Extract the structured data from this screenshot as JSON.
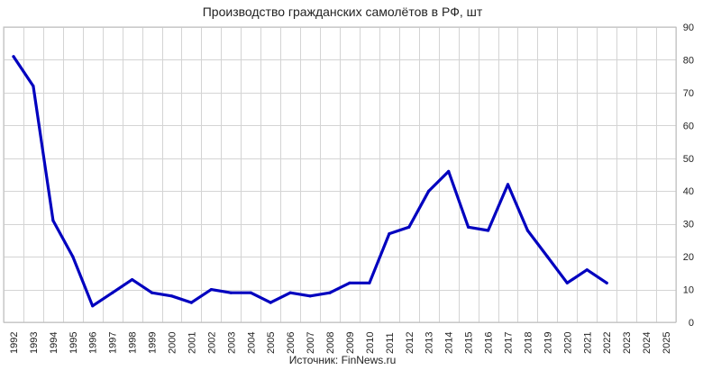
{
  "chart_data": {
    "type": "line",
    "title": "Производство гражданских самолётов в РФ, шт",
    "source": "Источник: FinNews.ru",
    "xlabel": "",
    "ylabel": "",
    "ylim": [
      0,
      90
    ],
    "yticks": [
      0,
      10,
      20,
      30,
      40,
      50,
      60,
      70,
      80,
      90
    ],
    "y_axis_side": "right",
    "grid": true,
    "legend": "none",
    "categories": [
      "1992",
      "1993",
      "1994",
      "1995",
      "1996",
      "1997",
      "1998",
      "1999",
      "2000",
      "2001",
      "2002",
      "2003",
      "2004",
      "2005",
      "2006",
      "2007",
      "2008",
      "2009",
      "2010",
      "2011",
      "2012",
      "2013",
      "2014",
      "2015",
      "2016",
      "2017",
      "2018",
      "2019",
      "2020",
      "2021",
      "2022",
      "2023",
      "2024",
      "2025"
    ],
    "series": [
      {
        "color": "#0000bf",
        "values": [
          81,
          72,
          31,
          20,
          5,
          9,
          13,
          9,
          8,
          6,
          10,
          9,
          9,
          6,
          9,
          8,
          9,
          12,
          12,
          27,
          29,
          40,
          46,
          29,
          28,
          42,
          28,
          20,
          12,
          16,
          12,
          null,
          null,
          null
        ]
      }
    ]
  }
}
